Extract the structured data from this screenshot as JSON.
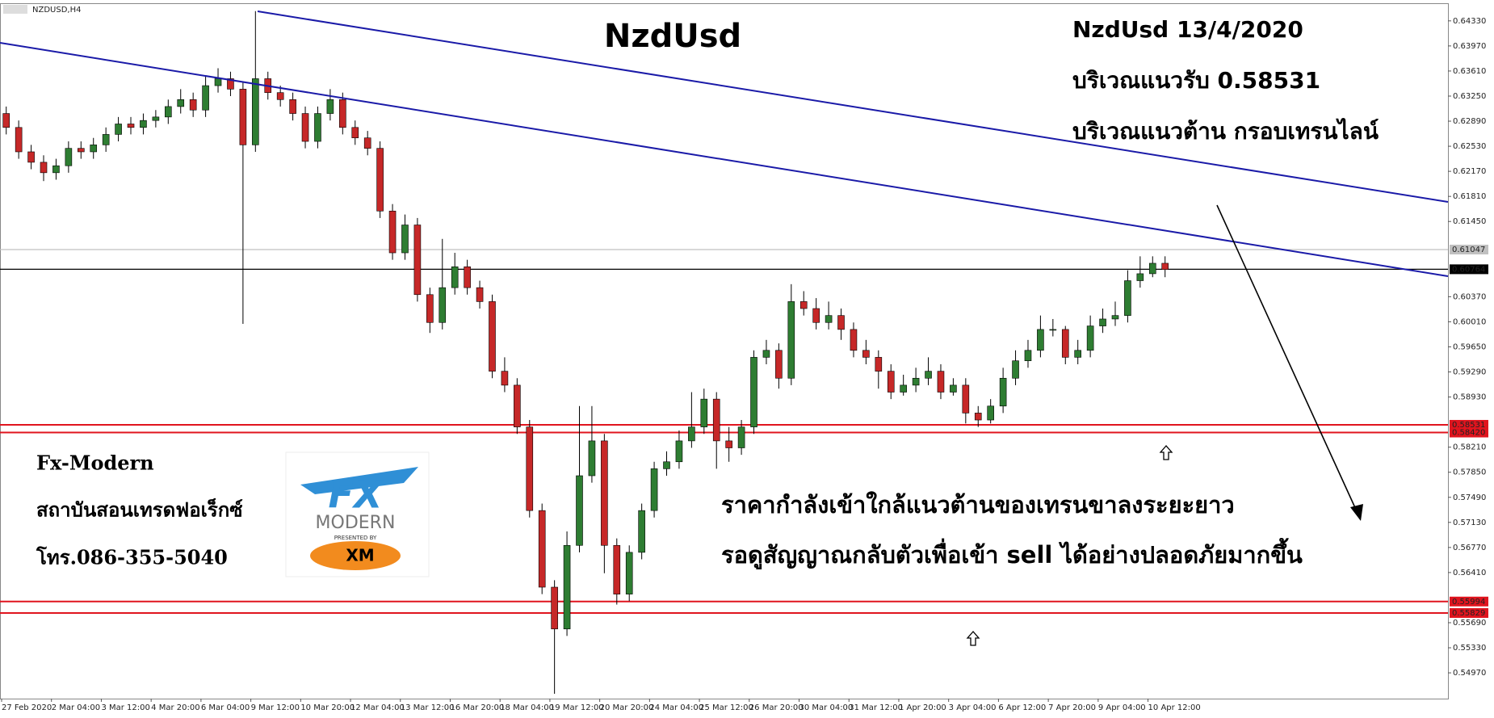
{
  "chart_data": {
    "type": "candlestick",
    "symbol": "NZDUSD,H4",
    "title": "NzdUsd",
    "up_color": "#2e7d32",
    "down_color": "#c62828",
    "categories": [
      "27 Feb 2020",
      "2 Mar 04:00",
      "3 Mar 12:00",
      "4 Mar 20:00",
      "6 Mar 04:00",
      "9 Mar 12:00",
      "10 Mar 20:00",
      "12 Mar 04:00",
      "13 Mar 12:00",
      "16 Mar 20:00",
      "18 Mar 04:00",
      "19 Mar 12:00",
      "20 Mar 20:00",
      "24 Mar 04:00",
      "25 Mar 12:00",
      "26 Mar 20:00",
      "30 Mar 04:00",
      "31 Mar 12:00",
      "1 Apr 20:00",
      "3 Apr 04:00",
      "6 Apr 12:00",
      "7 Apr 20:00",
      "9 Apr 04:00",
      "10 Apr 12:00"
    ],
    "open": [
      0.63,
      0.628,
      0.6245,
      0.623,
      0.6215,
      0.6225,
      0.625,
      0.6245,
      0.6255,
      0.627,
      0.6285,
      0.628,
      0.629,
      0.6295,
      0.631,
      0.632,
      0.6305,
      0.634,
      0.635,
      0.6335,
      0.6255,
      0.635,
      0.633,
      0.632,
      0.63,
      0.626,
      0.63,
      0.632,
      0.628,
      0.6265,
      0.625,
      0.616,
      0.61,
      0.614,
      0.604,
      0.6,
      0.605,
      0.608,
      0.605,
      0.603,
      0.593,
      0.591,
      0.585,
      0.573,
      0.562,
      0.556,
      0.568,
      0.578,
      0.583,
      0.568,
      0.561,
      0.567,
      0.573,
      0.579,
      0.58,
      0.583,
      0.585,
      0.589,
      0.583,
      0.582,
      0.585,
      0.595,
      0.596,
      0.592,
      0.603,
      0.602,
      0.6,
      0.601,
      0.599,
      0.596,
      0.595,
      0.593,
      0.59,
      0.591,
      0.592,
      0.593,
      0.59,
      0.591,
      0.587,
      0.586,
      0.588,
      0.592,
      0.5945,
      0.596,
      0.599,
      0.599,
      0.595,
      0.596,
      0.5995,
      0.6005,
      0.601,
      0.606,
      0.607,
      0.6085
    ],
    "high": [
      0.631,
      0.629,
      0.6255,
      0.624,
      0.6235,
      0.626,
      0.626,
      0.6265,
      0.628,
      0.6295,
      0.6295,
      0.63,
      0.6305,
      0.632,
      0.6335,
      0.633,
      0.6355,
      0.6365,
      0.636,
      0.6345,
      0.6447,
      0.636,
      0.634,
      0.633,
      0.631,
      0.631,
      0.6335,
      0.633,
      0.629,
      0.6275,
      0.626,
      0.617,
      0.6155,
      0.615,
      0.605,
      0.612,
      0.61,
      0.609,
      0.606,
      0.604,
      0.595,
      0.592,
      0.586,
      0.574,
      0.563,
      0.57,
      0.588,
      0.588,
      0.584,
      0.569,
      0.568,
      0.574,
      0.58,
      0.5815,
      0.5845,
      0.59,
      0.5905,
      0.59,
      0.585,
      0.586,
      0.596,
      0.5975,
      0.597,
      0.6055,
      0.6045,
      0.6035,
      0.603,
      0.602,
      0.6,
      0.5975,
      0.596,
      0.594,
      0.5925,
      0.5935,
      0.595,
      0.594,
      0.592,
      0.592,
      0.588,
      0.589,
      0.5935,
      0.596,
      0.5975,
      0.601,
      0.6005,
      0.5995,
      0.5975,
      0.601,
      0.602,
      0.603,
      0.6075,
      0.6095,
      0.6095,
      0.6095
    ],
    "low": [
      0.627,
      0.6235,
      0.622,
      0.6203,
      0.6205,
      0.6215,
      0.6235,
      0.6235,
      0.6245,
      0.626,
      0.627,
      0.627,
      0.628,
      0.6285,
      0.63,
      0.6295,
      0.6295,
      0.633,
      0.6325,
      0.5998,
      0.6245,
      0.632,
      0.631,
      0.629,
      0.625,
      0.625,
      0.629,
      0.627,
      0.6255,
      0.624,
      0.615,
      0.609,
      0.609,
      0.603,
      0.5985,
      0.599,
      0.604,
      0.604,
      0.602,
      0.592,
      0.59,
      0.584,
      0.572,
      0.561,
      0.5467,
      0.555,
      0.567,
      0.577,
      0.564,
      0.5595,
      0.56,
      0.566,
      0.572,
      0.578,
      0.579,
      0.582,
      0.584,
      0.579,
      0.58,
      0.581,
      0.584,
      0.594,
      0.5905,
      0.591,
      0.601,
      0.599,
      0.599,
      0.5975,
      0.595,
      0.594,
      0.5905,
      0.589,
      0.5895,
      0.59,
      0.591,
      0.589,
      0.5895,
      0.5855,
      0.585,
      0.5855,
      0.587,
      0.591,
      0.5935,
      0.595,
      0.598,
      0.594,
      0.594,
      0.595,
      0.5985,
      0.5995,
      0.6,
      0.605,
      0.6065,
      0.6065
    ],
    "close": [
      0.628,
      0.6245,
      0.623,
      0.6215,
      0.6225,
      0.625,
      0.6245,
      0.6255,
      0.627,
      0.6285,
      0.628,
      0.629,
      0.6295,
      0.631,
      0.632,
      0.6305,
      0.634,
      0.635,
      0.6335,
      0.6255,
      0.635,
      0.633,
      0.632,
      0.63,
      0.626,
      0.63,
      0.632,
      0.628,
      0.6265,
      0.625,
      0.616,
      0.61,
      0.614,
      0.604,
      0.6,
      0.605,
      0.608,
      0.605,
      0.603,
      0.593,
      0.591,
      0.585,
      0.573,
      0.562,
      0.556,
      0.568,
      0.578,
      0.583,
      0.568,
      0.561,
      0.567,
      0.573,
      0.579,
      0.58,
      0.583,
      0.585,
      0.589,
      0.583,
      0.582,
      0.585,
      0.595,
      0.596,
      0.592,
      0.603,
      0.602,
      0.6,
      0.601,
      0.599,
      0.596,
      0.595,
      0.593,
      0.59,
      0.591,
      0.592,
      0.593,
      0.59,
      0.591,
      0.587,
      0.586,
      0.588,
      0.592,
      0.5945,
      0.596,
      0.599,
      0.599,
      0.595,
      0.596,
      0.5995,
      0.6005,
      0.601,
      0.606,
      0.607,
      0.6085,
      0.6076
    ],
    "ylim": [
      0.546,
      0.6456
    ],
    "yticks": [
      {
        "value": 0.6433,
        "label": "0.64330"
      },
      {
        "value": 0.6397,
        "label": "0.63970"
      },
      {
        "value": 0.6361,
        "label": "0.63610"
      },
      {
        "value": 0.6325,
        "label": "0.63250"
      },
      {
        "value": 0.6289,
        "label": "0.62890"
      },
      {
        "value": 0.6253,
        "label": "0.62530"
      },
      {
        "value": 0.6217,
        "label": "0.62170"
      },
      {
        "value": 0.6181,
        "label": "0.61810"
      },
      {
        "value": 0.6145,
        "label": "0.61450"
      },
      {
        "value": 0.6037,
        "label": "0.60370"
      },
      {
        "value": 0.6001,
        "label": "0.60010"
      },
      {
        "value": 0.5965,
        "label": "0.59650"
      },
      {
        "value": 0.5929,
        "label": "0.59290"
      },
      {
        "value": 0.5893,
        "label": "0.58930"
      },
      {
        "value": 0.5821,
        "label": "0.58210"
      },
      {
        "value": 0.5785,
        "label": "0.57850"
      },
      {
        "value": 0.5749,
        "label": "0.57490"
      },
      {
        "value": 0.5713,
        "label": "0.57130"
      },
      {
        "value": 0.5677,
        "label": "0.56770"
      },
      {
        "value": 0.5641,
        "label": "0.56410"
      },
      {
        "value": 0.5569,
        "label": "0.55690"
      },
      {
        "value": 0.5533,
        "label": "0.55330"
      },
      {
        "value": 0.5497,
        "label": "0.54970"
      }
    ],
    "levels": [
      {
        "value": 0.61047,
        "label": "0.61047",
        "color": "#c0c0c0"
      },
      {
        "value": 0.60764,
        "label": "0.60764",
        "color": "#000000"
      },
      {
        "value": 0.58531,
        "label": "0.58531",
        "color": "#e0141e"
      },
      {
        "value": 0.5842,
        "label": "0.58420",
        "color": "#e0141e"
      },
      {
        "value": 0.55994,
        "label": "0.55994",
        "color": "#e0141e"
      },
      {
        "value": 0.55829,
        "label": "0.55829",
        "color": "#e0141e"
      }
    ],
    "annotations": {
      "date_line": "NzdUsd 13/4/2020",
      "support": "บริเวณแนวรับ 0.58531",
      "resistance": "บริเวณแนวต้าน กรอบเทรนไลน์",
      "brand": "Fx-Modern",
      "school": "สถาบันสอนเทรดฟอเร็กซ์",
      "phone": "โทร.086-355-5040",
      "comment_1": "ราคากำลังเข้าใกล้แนวต้านของเทรนขาลงระยะยาว",
      "comment_2": "รอดูสัญญาณกลับตัวเพื่อเข้า sell ได้อย่างปลอดภัยมากขึ้น"
    },
    "logo": {
      "mark": "FX",
      "name": "MODERN",
      "presented": "PRESENTED BY",
      "sponsor": "XM"
    }
  }
}
